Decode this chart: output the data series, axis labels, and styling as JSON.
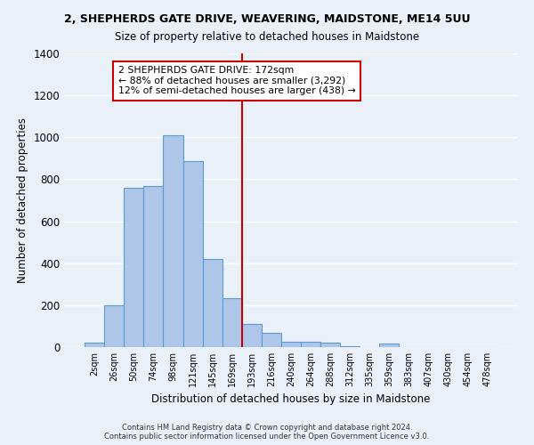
{
  "title_line1": "2, SHEPHERDS GATE DRIVE, WEAVERING, MAIDSTONE, ME14 5UU",
  "title_line2": "Size of property relative to detached houses in Maidstone",
  "xlabel": "Distribution of detached houses by size in Maidstone",
  "ylabel": "Number of detached properties",
  "bar_labels": [
    "2sqm",
    "26sqm",
    "50sqm",
    "74sqm",
    "98sqm",
    "121sqm",
    "145sqm",
    "169sqm",
    "193sqm",
    "216sqm",
    "240sqm",
    "264sqm",
    "288sqm",
    "312sqm",
    "335sqm",
    "359sqm",
    "383sqm",
    "407sqm",
    "430sqm",
    "454sqm",
    "478sqm"
  ],
  "bar_heights": [
    20,
    200,
    760,
    770,
    1010,
    885,
    420,
    235,
    110,
    70,
    25,
    25,
    20,
    5,
    0,
    15,
    0,
    0,
    0,
    0,
    0
  ],
  "bar_color": "#aec6e8",
  "bar_edge_color": "#5b9bd5",
  "vline_x": 7.5,
  "annotation_text": "2 SHEPHERDS GATE DRIVE: 172sqm\n← 88% of detached houses are smaller (3,292)\n12% of semi-detached houses are larger (438) →",
  "annotation_box_color": "#ffffff",
  "annotation_box_edge_color": "#cc0000",
  "vline_color": "#cc0000",
  "ylim": [
    0,
    1400
  ],
  "yticks": [
    0,
    200,
    400,
    600,
    800,
    1000,
    1200,
    1400
  ],
  "background_color": "#eaf0f8",
  "grid_color": "#ffffff",
  "footer_line1": "Contains HM Land Registry data © Crown copyright and database right 2024.",
  "footer_line2": "Contains public sector information licensed under the Open Government Licence v3.0."
}
